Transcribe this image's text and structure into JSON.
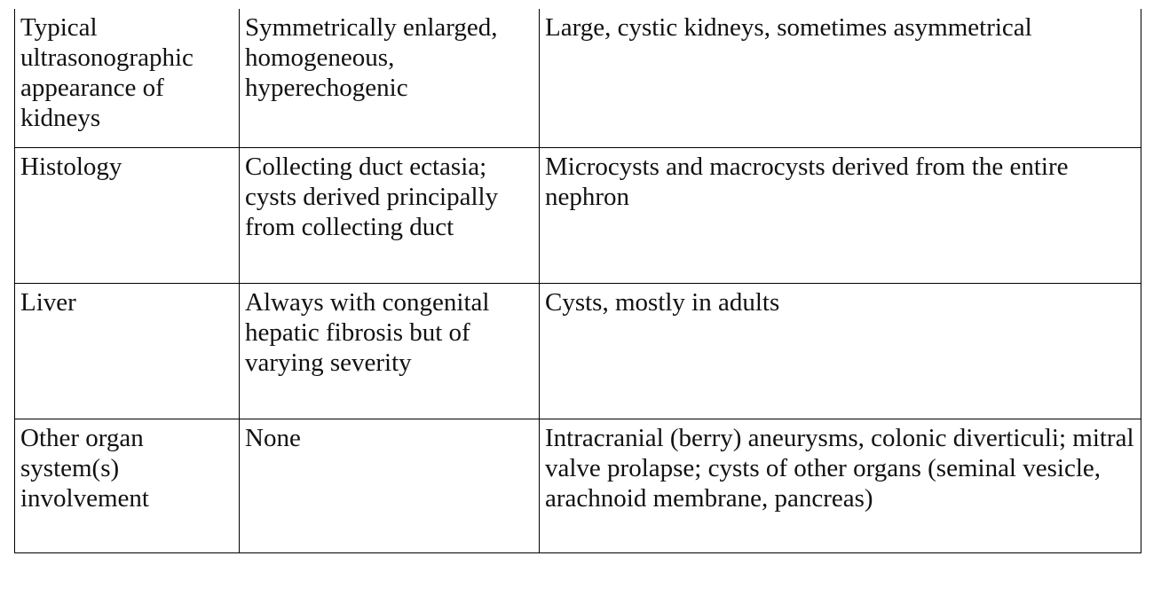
{
  "table": {
    "rows": [
      {
        "feature": "Typical ultrasonographic appearance of kidneys",
        "arpkd": "Symmetrically enlarged, homogeneous, hyperechogenic",
        "adpkd": "Large, cystic kidneys, sometimes asymmetrical"
      },
      {
        "feature": "Histology",
        "arpkd": "Collecting duct ectasia; cysts derived principally from collecting duct",
        "adpkd": "Microcysts and macrocysts derived from the entire nephron"
      },
      {
        "feature": "Liver",
        "arpkd": "Always with congenital hepatic fibrosis but of varying severity",
        "adpkd": "Cysts, mostly in adults"
      },
      {
        "feature": "Other organ system(s) involvement",
        "arpkd": "None",
        "adpkd": "Intracranial (berry) aneurysms, colonic diverticuli; mitral valve prolapse; cysts of other organs (seminal vesicle, arachnoid membrane, pancreas)"
      }
    ]
  }
}
